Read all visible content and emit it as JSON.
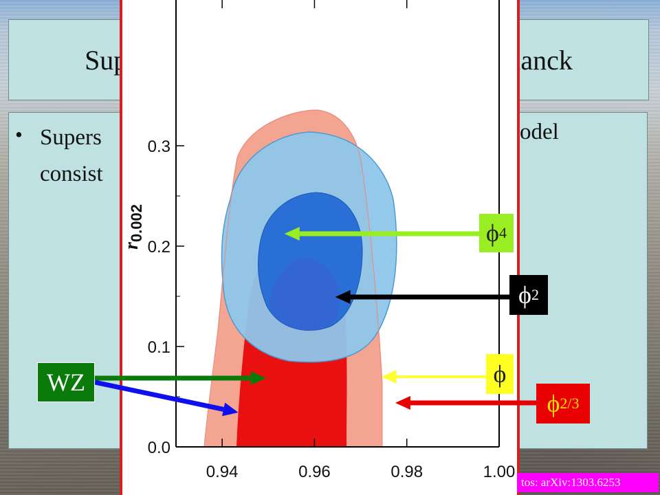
{
  "slide": {
    "title": "Supersymmetric Inflation in Light of Planck",
    "bullet_symbol": "•",
    "bullet_line1_left": "Supers",
    "bullet_line1_right": "odel",
    "bullet_line2_left": "consist"
  },
  "chart_data": {
    "type": "contour",
    "xlabel": "",
    "ylabel": "r",
    "ylabel_subscript": "0.002",
    "xlim": [
      0.93,
      1.0
    ],
    "ylim": [
      0.0,
      0.34
    ],
    "x_ticks": [
      "0.94",
      "0.96",
      "0.98",
      "1.00"
    ],
    "y_ticks": [
      "0.0",
      "0.1",
      "0.2",
      "0.3"
    ],
    "regions": [
      {
        "name": "salmon-outer",
        "color": "#f4a592"
      },
      {
        "name": "red-inner",
        "color": "#e81010"
      },
      {
        "name": "light-blue-outer",
        "color": "#8fc6ea"
      },
      {
        "name": "dark-blue-inner",
        "color": "#2a6fd6"
      }
    ],
    "markers": [
      {
        "label": "ϕ",
        "sup": "4",
        "x": 0.9535,
        "y": 0.21,
        "arrow_color": "#99ee22",
        "box_bg": "#99ee22",
        "text_color": "#222222"
      },
      {
        "label": "ϕ",
        "sup": "2",
        "x": 0.9645,
        "y": 0.148,
        "arrow_color": "#000000",
        "box_bg": "#000000",
        "text_color": "#ffffff"
      },
      {
        "label": "ϕ",
        "sup": "",
        "x": 0.9745,
        "y": 0.07,
        "arrow_color": "#ffff33",
        "box_bg": "#ffff22",
        "text_color": "#222222"
      },
      {
        "label": "ϕ",
        "sup": "2/3",
        "x": 0.9775,
        "y": 0.044,
        "arrow_color": "#e80000",
        "box_bg": "#e80000",
        "text_color": "#ffe000"
      }
    ],
    "wz": {
      "label": "WZ",
      "box_bg": "#0a7a0a",
      "text_color": "#ffffff",
      "targets": [
        {
          "x": 0.9495,
          "y": 0.066,
          "color": "#0a7a0a"
        },
        {
          "x": 0.9435,
          "y": 0.034,
          "color": "#1010ee"
        }
      ]
    }
  },
  "credit": "tos: arXiv:1303.6253"
}
